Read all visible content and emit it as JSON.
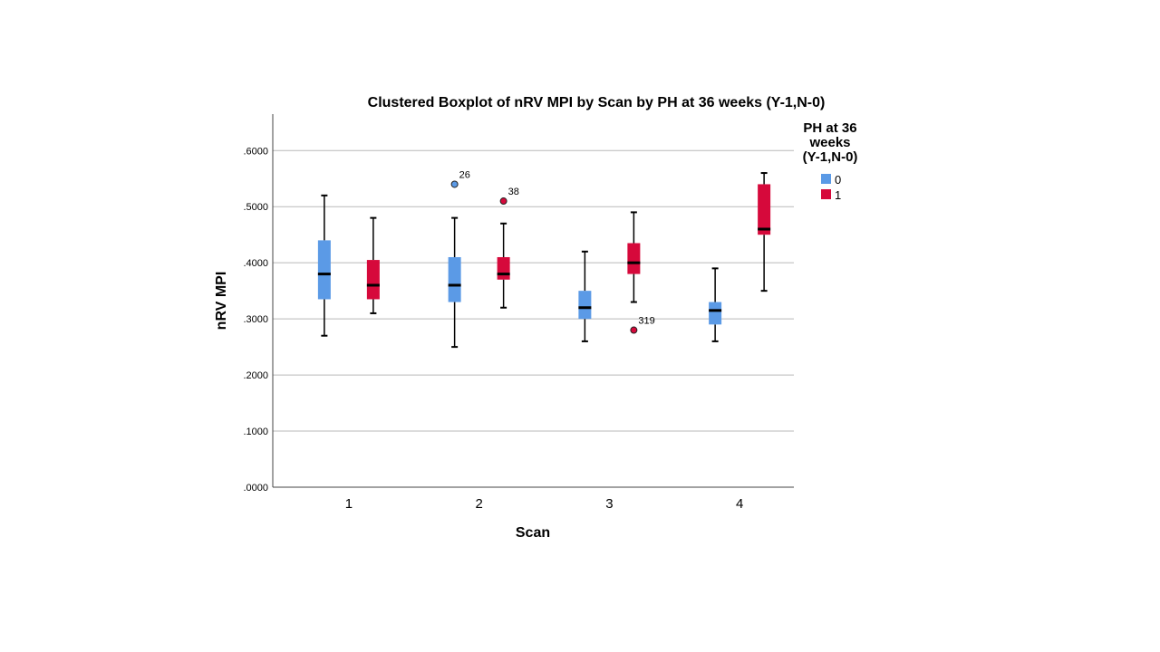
{
  "chart_data": {
    "type": "boxplot",
    "title": "Clustered Boxplot of nRV MPI by Scan by PH at 36 weeks (Y-1,N-0)",
    "xlabel": "Scan",
    "ylabel": "nRV MPI",
    "categories": [
      "1",
      "2",
      "3",
      "4"
    ],
    "yticks": [
      ".0000",
      ".1000",
      ".2000",
      ".3000",
      ".4000",
      ".5000",
      ".6000"
    ],
    "ylim": [
      0,
      0.665
    ],
    "grid": true,
    "legend": {
      "title_lines": [
        "PH at 36",
        "weeks",
        "(Y-1,N-0)"
      ],
      "position": "right"
    },
    "series": [
      {
        "name": "0",
        "color": "#5b9ae6",
        "boxes": [
          {
            "min": 0.27,
            "q1": 0.335,
            "median": 0.38,
            "q3": 0.44,
            "max": 0.52,
            "outliers": []
          },
          {
            "min": 0.25,
            "q1": 0.33,
            "median": 0.36,
            "q3": 0.41,
            "max": 0.48,
            "outliers": [
              {
                "value": 0.54,
                "label": "26"
              }
            ]
          },
          {
            "min": 0.26,
            "q1": 0.3,
            "median": 0.32,
            "q3": 0.35,
            "max": 0.42,
            "outliers": []
          },
          {
            "min": 0.26,
            "q1": 0.29,
            "median": 0.315,
            "q3": 0.33,
            "max": 0.39,
            "outliers": []
          }
        ]
      },
      {
        "name": "1",
        "color": "#d6093b",
        "boxes": [
          {
            "min": 0.31,
            "q1": 0.335,
            "median": 0.36,
            "q3": 0.405,
            "max": 0.48,
            "outliers": []
          },
          {
            "min": 0.32,
            "q1": 0.37,
            "median": 0.38,
            "q3": 0.41,
            "max": 0.47,
            "outliers": [
              {
                "value": 0.51,
                "label": "38"
              }
            ]
          },
          {
            "min": 0.33,
            "q1": 0.38,
            "median": 0.4,
            "q3": 0.435,
            "max": 0.49,
            "outliers": [
              {
                "value": 0.28,
                "label": "319"
              }
            ]
          },
          {
            "min": 0.35,
            "q1": 0.45,
            "median": 0.46,
            "q3": 0.54,
            "max": 0.56,
            "outliers": []
          }
        ]
      }
    ]
  }
}
